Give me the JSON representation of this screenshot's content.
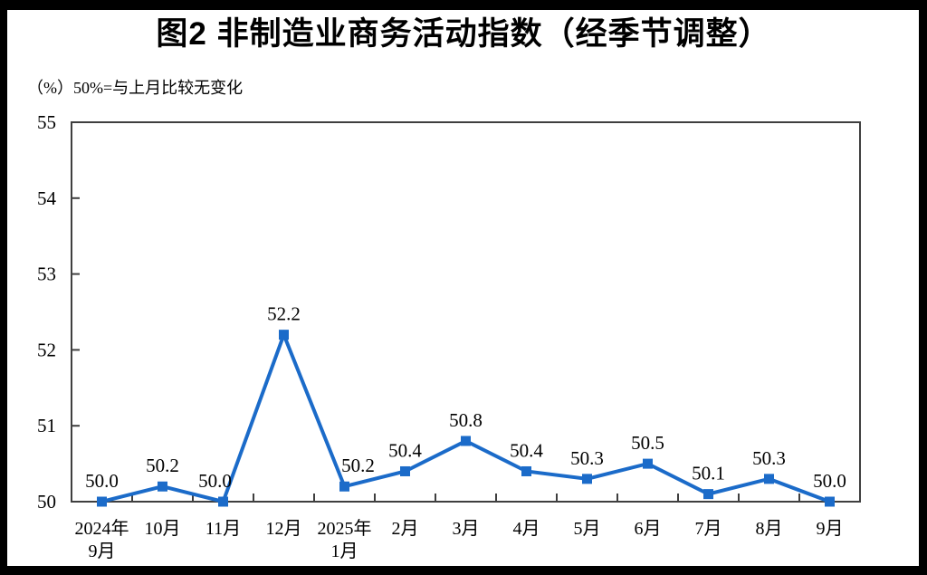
{
  "page": {
    "title": "图2  非制造业商务活动指数（经季节调整）",
    "unit_note": "（%）50%=与上月比较无变化"
  },
  "chart_data": {
    "type": "line",
    "title": "图2  非制造业商务活动指数（经季节调整）",
    "ylabel": "（%）50%=与上月比较无变化",
    "categories": [
      "2024年9月",
      "10月",
      "11月",
      "12月",
      "2025年1月",
      "2月",
      "3月",
      "4月",
      "5月",
      "6月",
      "7月",
      "8月",
      "9月"
    ],
    "category_lines": [
      [
        "2024年",
        "9月"
      ],
      [
        "10月"
      ],
      [
        "11月"
      ],
      [
        "12月"
      ],
      [
        "2025年",
        "1月"
      ],
      [
        "2月"
      ],
      [
        "3月"
      ],
      [
        "4月"
      ],
      [
        "5月"
      ],
      [
        "6月"
      ],
      [
        "7月"
      ],
      [
        "8月"
      ],
      [
        "9月"
      ]
    ],
    "series": [
      {
        "name": "非制造业商务活动指数",
        "values": [
          50.0,
          50.2,
          50.0,
          52.2,
          50.2,
          50.4,
          50.8,
          50.4,
          50.3,
          50.5,
          50.1,
          50.3,
          50.0
        ],
        "data_labels": [
          "50.0",
          "50.2",
          "50.0",
          "52.2",
          "50.2",
          "50.4",
          "50.8",
          "50.4",
          "50.3",
          "50.5",
          "50.1",
          "50.3",
          "50.0"
        ]
      }
    ],
    "ylim": [
      50,
      55
    ],
    "yticks": [
      "50",
      "51",
      "52",
      "53",
      "54",
      "55"
    ],
    "grid": false,
    "legend": "none",
    "marker": "square",
    "line_color": "#1B6BC9",
    "axis_color": "#3F3F3F",
    "text_color": "#000000",
    "background_color": "#FFFFFF",
    "border_color": "#000000"
  }
}
